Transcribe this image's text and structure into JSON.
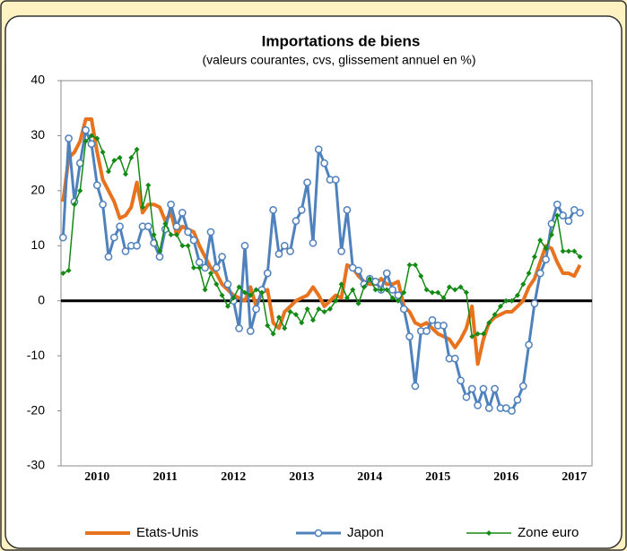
{
  "chart_data": {
    "type": "line",
    "title": "Importations de biens",
    "subtitle": "(valeurs courantes, cvs, glissement annuel en %)",
    "x": [
      2010,
      2010.083,
      2010.167,
      2010.25,
      2010.333,
      2010.417,
      2010.5,
      2010.583,
      2010.667,
      2010.75,
      2010.833,
      2010.917,
      2011,
      2011.083,
      2011.167,
      2011.25,
      2011.333,
      2011.417,
      2011.5,
      2011.583,
      2011.667,
      2011.75,
      2011.833,
      2011.917,
      2012,
      2012.083,
      2012.167,
      2012.25,
      2012.333,
      2012.417,
      2012.5,
      2012.583,
      2012.667,
      2012.75,
      2012.833,
      2012.917,
      2013,
      2013.083,
      2013.167,
      2013.25,
      2013.333,
      2013.417,
      2013.5,
      2013.583,
      2013.667,
      2013.75,
      2013.833,
      2013.917,
      2014,
      2014.083,
      2014.167,
      2014.25,
      2014.333,
      2014.417,
      2014.5,
      2014.583,
      2014.667,
      2014.75,
      2014.833,
      2014.917,
      2015,
      2015.083,
      2015.167,
      2015.25,
      2015.333,
      2015.417,
      2015.5,
      2015.583,
      2015.667,
      2015.75,
      2015.833,
      2015.917,
      2016,
      2016.083,
      2016.167,
      2016.25,
      2016.333,
      2016.417,
      2016.5,
      2016.583,
      2016.667,
      2016.75,
      2016.833,
      2016.917,
      2017,
      2017.083,
      2017.167,
      2017.25,
      2017.333,
      2017.417,
      2017.5,
      2017.583
    ],
    "series": [
      {
        "name": "Etats-Unis",
        "color": "#e8731e",
        "marker": "none",
        "values": [
          18,
          26,
          27,
          29,
          33,
          33,
          27,
          22,
          20,
          18,
          15,
          15.5,
          17,
          21.5,
          16,
          17.5,
          17.5,
          17,
          14.5,
          16,
          12,
          13.5,
          13,
          12.5,
          10,
          8,
          6,
          5,
          3,
          2,
          1,
          0.5,
          0,
          2.5,
          -1,
          1.5,
          2,
          -4,
          -5,
          -2,
          -1,
          0,
          0.5,
          1,
          2.5,
          1,
          -1,
          0,
          1,
          0.5,
          6.5,
          6,
          4.5,
          3.5,
          3,
          3,
          4,
          3,
          3,
          3.5,
          -1,
          -2,
          -4,
          -4.5,
          -4,
          -5,
          -6,
          -6.5,
          -7,
          -8.5,
          -7,
          -5,
          -1,
          -11.5,
          -7,
          -4,
          -3,
          -2.5,
          -2,
          -2,
          -1,
          0,
          2.5,
          4,
          7,
          10,
          9.5,
          7,
          5,
          5,
          4.5,
          6.5
        ]
      },
      {
        "name": "Japon",
        "color": "#4f81bd",
        "marker": "circle",
        "values": [
          11.5,
          29.5,
          18,
          25,
          31,
          28.5,
          21,
          17.5,
          8,
          11.5,
          13.5,
          9,
          10,
          10,
          13.5,
          13.5,
          10.5,
          8,
          13,
          17.5,
          13.5,
          16,
          12.5,
          11,
          7,
          6,
          12.5,
          6,
          8,
          3,
          0,
          -5,
          10,
          -5.5,
          -1.5,
          2,
          5,
          16.5,
          8.5,
          10,
          9,
          14.5,
          16.5,
          21.5,
          10.5,
          27.5,
          25,
          22,
          22,
          9,
          16.5,
          6,
          5.5,
          3,
          4,
          3.5,
          2,
          5,
          2,
          1,
          -1.5,
          -6.5,
          -15.5,
          -5.5,
          -5.5,
          -3.5,
          -4.5,
          -4.5,
          -10.5,
          -10.5,
          -14.5,
          -17.5,
          -16,
          -19,
          -16,
          -19.5,
          -16,
          -19.5,
          -19.5,
          -20,
          -18,
          -15.5,
          -8,
          -0.5,
          5,
          7.5,
          14,
          17.5,
          15.5,
          14.5,
          16.5,
          16
        ]
      },
      {
        "name": "Zone euro",
        "color": "#138a13",
        "marker": "diamond",
        "values": [
          5,
          5.5,
          17.5,
          20,
          29,
          30,
          29.5,
          27,
          23.5,
          25.5,
          26,
          23,
          26,
          27.5,
          17,
          21,
          12,
          9,
          14,
          12,
          12,
          10,
          10,
          6,
          6,
          2,
          5,
          3,
          1,
          -1,
          0.5,
          2.5,
          1.5,
          1,
          2,
          1.5,
          -4.5,
          -6,
          -3,
          -5,
          -2,
          -2.5,
          -4,
          -1.5,
          -3.5,
          -1.5,
          -2,
          -1.5,
          0,
          3,
          0.5,
          2,
          -0.5,
          2.5,
          4,
          2,
          2,
          2,
          0.5,
          0,
          1.5,
          6.5,
          6.5,
          4.5,
          2,
          1.5,
          1.5,
          0.5,
          2.5,
          2,
          2.5,
          1.5,
          -6.5,
          -6,
          -6,
          -4,
          -2.5,
          -1,
          0,
          0,
          1,
          3,
          5,
          8,
          11,
          9.5,
          12,
          15.5,
          9,
          9,
          9,
          8
        ]
      }
    ],
    "xlim": [
      2009.97,
      2017.76
    ],
    "xticks": [
      {
        "value": 2010.5,
        "label": "2010"
      },
      {
        "value": 2011.5,
        "label": "2011"
      },
      {
        "value": 2012.5,
        "label": "2012"
      },
      {
        "value": 2013.5,
        "label": "2013"
      },
      {
        "value": 2014.5,
        "label": "2014"
      },
      {
        "value": 2015.5,
        "label": "2015"
      },
      {
        "value": 2016.5,
        "label": "2016"
      },
      {
        "value": 2017.5,
        "label": "2017"
      }
    ],
    "ylim": [
      -30,
      40
    ],
    "yticks": [
      -30,
      -20,
      -10,
      0,
      10,
      20,
      30,
      40
    ],
    "grid": false,
    "legend": "bottom"
  }
}
